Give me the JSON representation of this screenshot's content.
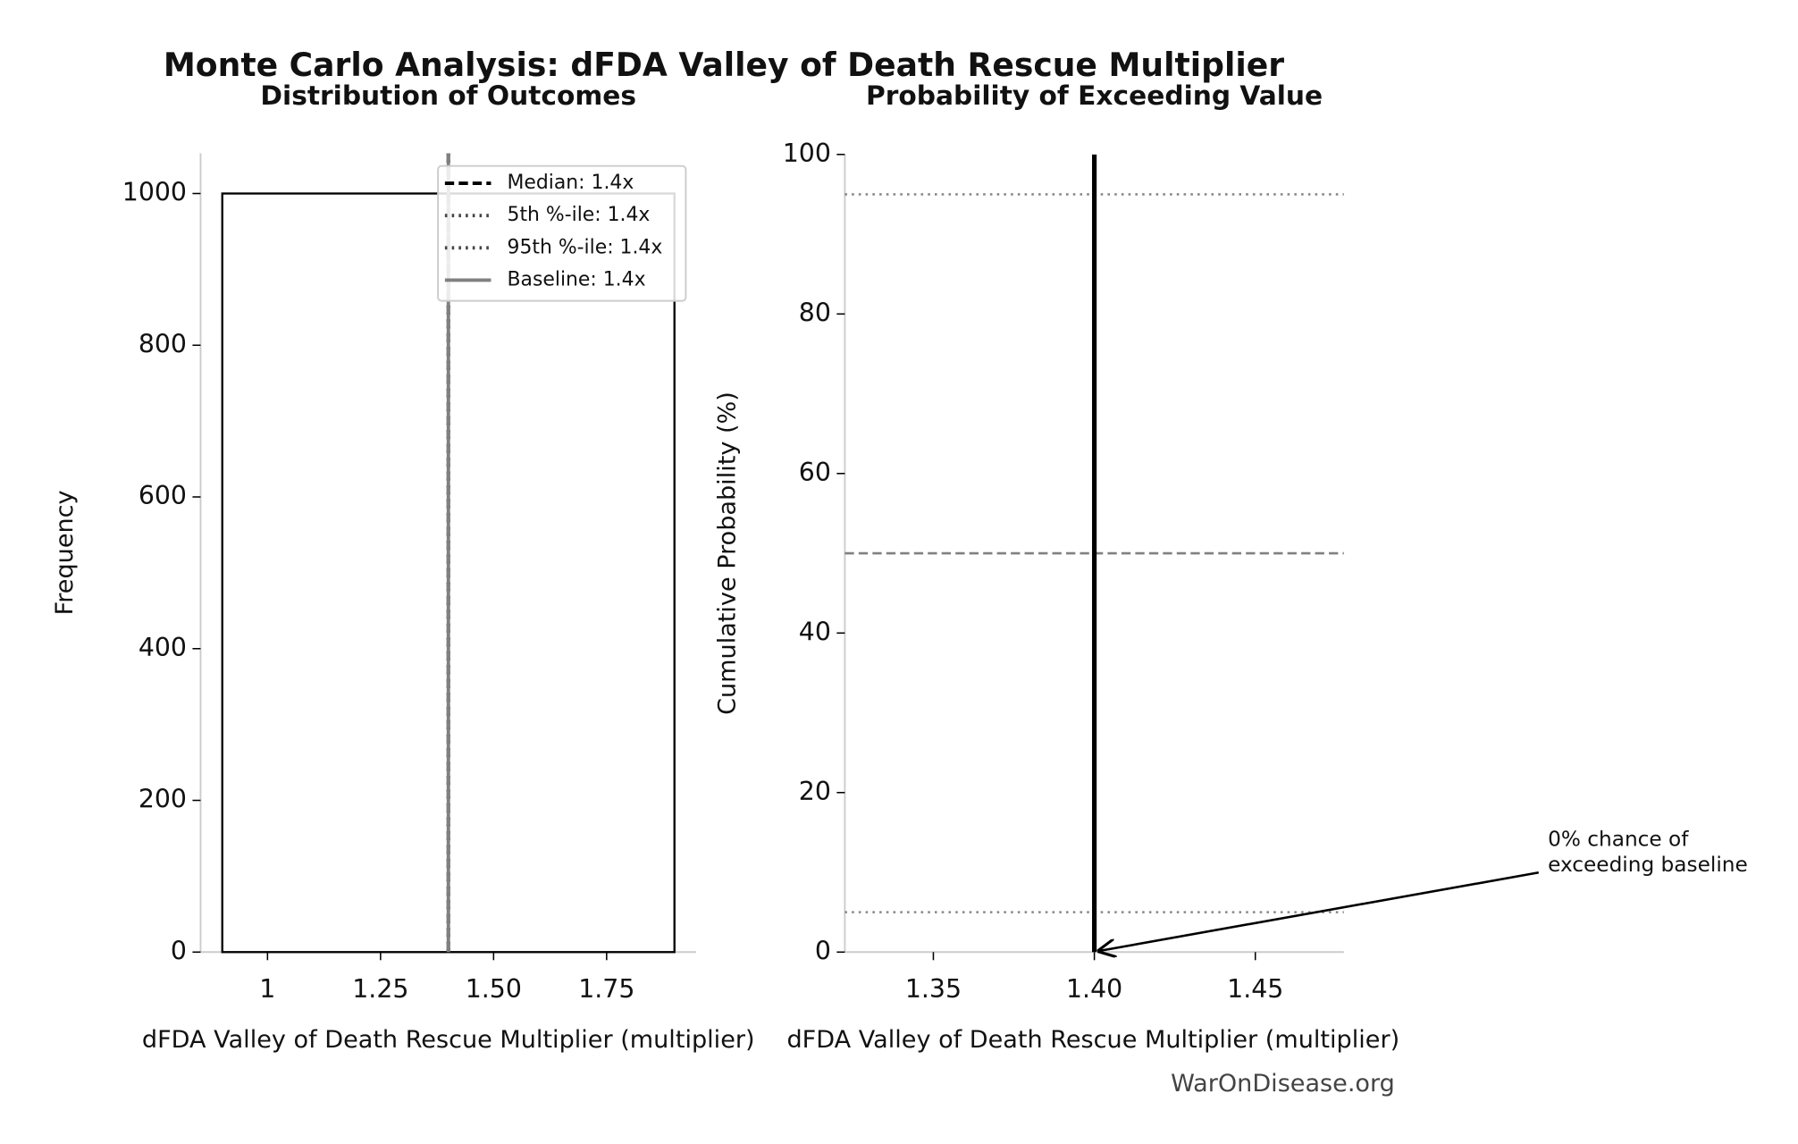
{
  "title": "Monte Carlo Analysis: dFDA Valley of Death Rescue Multiplier",
  "footer": "WarOnDisease.org",
  "chart_data": [
    {
      "type": "histogram",
      "title": "Distribution of Outcomes",
      "x_label": "dFDA Valley of Death Rescue Multiplier (multiplier)",
      "y_label": "Frequency",
      "bins": [
        0.9,
        1.9
      ],
      "values": [
        1000
      ],
      "color": "#000000",
      "xlim": [
        0.852,
        1.948
      ],
      "xticks": [
        1,
        1.25,
        {
          "value": 1.5,
          "label": "1.50"
        },
        1.75
      ],
      "ylim": [
        0,
        1053
      ],
      "yticks": [
        0,
        200,
        400,
        600,
        800,
        1000
      ],
      "legend": "upper right",
      "reference_lines": [
        {
          "name": "Median: 1.4x",
          "value": 1.4,
          "color": "#000000",
          "style": "dashed"
        },
        {
          "name": "5th %-ile: 1.4x",
          "value": 1.4,
          "color": "#444444",
          "style": "dotted"
        },
        {
          "name": "95th %-ile: 1.4x",
          "value": 1.4,
          "color": "#444444",
          "style": "dotted"
        },
        {
          "name": "Baseline: 1.4x",
          "value": 1.4,
          "color": "#808080",
          "style": "solid"
        }
      ]
    },
    {
      "type": "line",
      "title": "Probability of Exceeding Value",
      "x_label": "dFDA Valley of Death Rescue Multiplier (multiplier)",
      "y_label": "Cumulative Probability (%)",
      "x": [
        1.4,
        1.4
      ],
      "values": [
        100,
        0
      ],
      "color": "#000000",
      "xlim": [
        1.3225,
        1.4775
      ],
      "xticks": [
        1.35,
        {
          "value": 1.4,
          "label": "1.40"
        },
        1.45
      ],
      "ylim": [
        0,
        100
      ],
      "yticks": [
        0,
        20,
        40,
        60,
        80,
        100
      ],
      "hlines": [
        {
          "value": 95,
          "color": "#888888",
          "style": "dotted"
        },
        {
          "value": 50,
          "color": "#808080",
          "style": "dashed"
        },
        {
          "value": 5,
          "color": "#888888",
          "style": "dotted"
        }
      ],
      "annotation": {
        "lines": [
          "0% chance of",
          "exceeding baseline"
        ],
        "xy": [
          1.4,
          0
        ]
      }
    }
  ]
}
